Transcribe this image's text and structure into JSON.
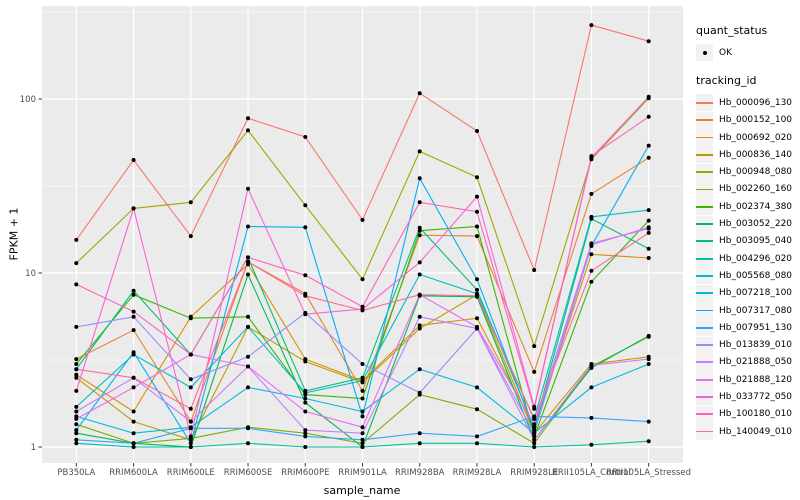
{
  "chart_data": {
    "type": "line",
    "title": "",
    "xlabel": "sample_name",
    "ylabel": "FPKM + 1",
    "y_scale": "log10",
    "y_ticks": [
      1,
      10,
      100
    ],
    "y_minor_ticks": [
      3.162,
      31.62,
      316.2
    ],
    "ylim": [
      0.93,
      342
    ],
    "grid": "white major and minor gridlines on gray panel",
    "legend_position": "right",
    "point_marker": "small black dot at every observation (quant_status = OK)",
    "categories": [
      "PB350LA",
      "RRIM600LA",
      "RRIM600LE",
      "RRIM600SE",
      "RRIM600PE",
      "RRIM901LA",
      "RRIM928BA",
      "RRIM928LA",
      "RRIM928LE",
      "RRII105LA_Control",
      "RRII105LA_Stressed"
    ],
    "series": [
      {
        "name": "Hb_000096_130",
        "color": "#F8766D",
        "values": [
          15.5,
          44.6,
          16.3,
          77.6,
          60.5,
          20.2,
          108,
          65.5,
          10.4,
          266,
          215
        ]
      },
      {
        "name": "Hb_000152_100",
        "color": "#EA8331",
        "values": [
          3.2,
          4.7,
          1.4,
          11.6,
          7.6,
          2.1,
          16.5,
          16.3,
          2.7,
          28.5,
          46
        ]
      },
      {
        "name": "Hb_000692_020",
        "color": "#D89000",
        "values": [
          2.6,
          1.6,
          5.6,
          11.2,
          3.2,
          2.4,
          5.0,
          5.5,
          1.3,
          12.8,
          12.2
        ]
      },
      {
        "name": "Hb_000836_140",
        "color": "#C09B00",
        "values": [
          2.5,
          1.4,
          1.1,
          4.9,
          3.1,
          2.35,
          4.8,
          7.5,
          1.2,
          3.0,
          3.3
        ]
      },
      {
        "name": "Hb_000948_080",
        "color": "#A3A500",
        "values": [
          11.4,
          23.5,
          25.5,
          66,
          24.5,
          9.2,
          50,
          35.5,
          3.8,
          45,
          101
        ]
      },
      {
        "name": "Hb_002260_160",
        "color": "#7CAE00",
        "values": [
          1.35,
          1.05,
          1.12,
          1.3,
          1.2,
          1.05,
          2.0,
          1.65,
          1.05,
          2.9,
          4.3
        ]
      },
      {
        "name": "Hb_002374_380",
        "color": "#39B600",
        "values": [
          3.0,
          7.5,
          5.5,
          5.6,
          2.0,
          1.9,
          17.5,
          18.5,
          1.15,
          8.9,
          20
        ]
      },
      {
        "name": "Hb_003052_220",
        "color": "#00BB4E",
        "values": [
          1.2,
          1.05,
          1.0,
          9.8,
          1.8,
          1.0,
          7.4,
          7.3,
          1.1,
          2.85,
          4.35
        ]
      },
      {
        "name": "Hb_003095_040",
        "color": "#00BF7D",
        "values": [
          2.8,
          7.9,
          3.4,
          12.3,
          2.1,
          2.5,
          18.2,
          8.0,
          1.3,
          20.5,
          13.8
        ]
      },
      {
        "name": "Hb_004296_020",
        "color": "#00C1A3",
        "values": [
          1.05,
          1.0,
          1.0,
          1.05,
          1.0,
          1.0,
          1.05,
          1.05,
          1.0,
          1.03,
          1.08
        ]
      },
      {
        "name": "Hb_005568_080",
        "color": "#00BFC4",
        "values": [
          1.7,
          3.4,
          2.2,
          4.9,
          2.05,
          2.4,
          9.8,
          7.6,
          1.45,
          21,
          23
        ]
      },
      {
        "name": "Hb_007218_100",
        "color": "#00BAE0",
        "values": [
          1.5,
          1.2,
          1.3,
          2.2,
          1.9,
          1.6,
          2.8,
          2.2,
          1.2,
          2.2,
          3.0
        ]
      },
      {
        "name": "Hb_007317_080",
        "color": "#00B0F6",
        "values": [
          1.25,
          3.5,
          1.05,
          18.5,
          18.3,
          1.5,
          35,
          9.2,
          1.25,
          14.3,
          54
        ]
      },
      {
        "name": "Hb_007951_130",
        "color": "#35A2FF",
        "values": [
          1.1,
          1.05,
          1.28,
          1.28,
          1.15,
          1.1,
          1.2,
          1.15,
          1.5,
          1.47,
          1.4
        ]
      },
      {
        "name": "Hb_013839_010",
        "color": "#9590FF",
        "values": [
          4.9,
          5.6,
          2.45,
          3.3,
          5.9,
          3.0,
          2.05,
          4.8,
          1.2,
          14.5,
          18.3
        ]
      },
      {
        "name": "Hb_021888_050",
        "color": "#C77CFF",
        "values": [
          1.6,
          2.5,
          1.4,
          2.9,
          1.25,
          1.2,
          5.6,
          4.8,
          1.1,
          2.95,
          3.2
        ]
      },
      {
        "name": "Hb_021888_120",
        "color": "#E76BF3",
        "values": [
          1.45,
          2.2,
          3.4,
          2.9,
          1.6,
          1.3,
          7.5,
          4.9,
          1.35,
          14.8,
          18.0
        ]
      },
      {
        "name": "Hb_033772_050",
        "color": "#FA62DB",
        "values": [
          2.1,
          23.5,
          1.15,
          30.5,
          5.8,
          6.2,
          11.5,
          27.5,
          1.7,
          46,
          103
        ]
      },
      {
        "name": "Hb_100180_010",
        "color": "#FF62BC",
        "values": [
          8.6,
          6.0,
          3.4,
          12.3,
          9.7,
          6.4,
          25.5,
          22.5,
          1.66,
          47,
          79
        ]
      },
      {
        "name": "Hb_140049_010",
        "color": "#FF6A98",
        "values": [
          2.8,
          2.5,
          1.66,
          11.6,
          7.4,
          6.1,
          7.5,
          7.4,
          1.45,
          10.3,
          17
        ]
      }
    ]
  },
  "legend": {
    "quant_status": {
      "title": "quant_status",
      "entries": [
        {
          "label": "OK",
          "marker": "point-icon"
        }
      ]
    },
    "tracking_id": {
      "title": "tracking_id"
    }
  },
  "colors": {
    "panel_bg": "#EBEBEB",
    "grid": "#FFFFFF",
    "tick_label": "#4D4D4D",
    "tick_mark": "#333333",
    "legend_key_bg": "#F2F2F2",
    "point": "#000000",
    "background": "#FFFFFF"
  }
}
